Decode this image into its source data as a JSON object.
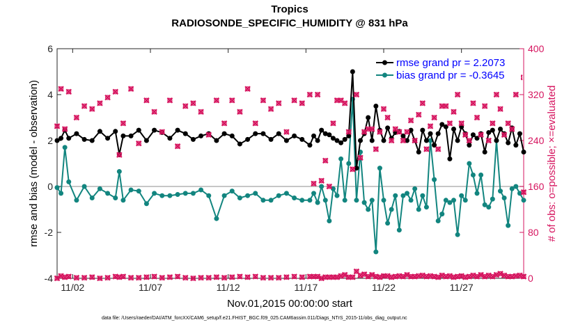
{
  "chart_data": {
    "type": "line",
    "title": "Tropics",
    "subtitle": "RADIOSONDE_SPECIFIC_HUMIDITY @ 831 hPa",
    "xlabel": "Nov.01,2015 00:00:00 start",
    "ylabel_left": "rmse and bias (model - observation)",
    "ylabel_right": "# of obs: o=possible; ×=evaluated",
    "ylim_left": [
      -4,
      6
    ],
    "ylim_right": [
      0,
      400
    ],
    "xlim": [
      1,
      31
    ],
    "x_tick_values": [
      2,
      7,
      12,
      17,
      22,
      27
    ],
    "x_tick_labels": [
      "11/02",
      "11/07",
      "11/12",
      "11/17",
      "11/22",
      "11/27"
    ],
    "y_left_ticks": [
      -4,
      -2,
      0,
      2,
      4,
      6
    ],
    "y_right_ticks": [
      0,
      80,
      160,
      240,
      320,
      400
    ],
    "footer": "data file: /Users/raeder/DAI/ATM_forcXX/CAM6_setup/f.e21.FHIST_BGC.f09_025.CAM6assim.011/Diags_NTrS_2015-11/obs_diag_output.nc",
    "colors": {
      "rmse": "#000000",
      "bias": "#12857f",
      "obs": "#d6155f",
      "zero": "#b3b3b3"
    },
    "series": [
      {
        "name": "rmse",
        "legend": "rmse grand pr = 2.2073",
        "axis": "left",
        "x": [
          1.0,
          1.25,
          1.5,
          1.75,
          2.25,
          2.75,
          3.25,
          3.75,
          4.25,
          4.75,
          5.0,
          5.25,
          5.75,
          6.25,
          6.75,
          7.25,
          7.75,
          8.25,
          8.75,
          9.25,
          9.75,
          10.25,
          10.75,
          11.25,
          11.75,
          12.25,
          12.75,
          13.25,
          13.75,
          14.25,
          14.75,
          15.25,
          15.75,
          16.25,
          16.75,
          17.25,
          17.5,
          17.75,
          18.0,
          18.25,
          18.5,
          18.75,
          19.0,
          19.25,
          19.5,
          19.75,
          20.0,
          20.25,
          20.5,
          20.75,
          21.0,
          21.25,
          21.5,
          21.75,
          22.0,
          22.25,
          22.5,
          22.75,
          23.0,
          23.25,
          23.5,
          23.75,
          24.0,
          24.25,
          24.5,
          24.75,
          25.0,
          25.25,
          25.5,
          25.75,
          26.0,
          26.25,
          26.5,
          26.75,
          27.0,
          27.25,
          27.5,
          27.75,
          28.0,
          28.25,
          28.5,
          28.75,
          29.0,
          29.25,
          29.5,
          29.75,
          30.0,
          30.25,
          30.5,
          30.75,
          31.0
        ],
        "values": [
          2.0,
          2.1,
          2.45,
          2.1,
          2.3,
          2.05,
          2.0,
          2.4,
          2.1,
          2.4,
          1.4,
          2.2,
          2.2,
          2.45,
          2.0,
          2.45,
          2.35,
          2.1,
          2.45,
          2.3,
          2.05,
          2.2,
          2.3,
          2.0,
          2.3,
          2.2,
          1.85,
          2.05,
          2.3,
          2.3,
          2.05,
          2.3,
          2.0,
          2.2,
          2.05,
          1.8,
          2.2,
          2.0,
          2.45,
          2.3,
          2.25,
          2.1,
          2.0,
          1.9,
          2.05,
          2.2,
          5.0,
          0.8,
          2.0,
          2.3,
          3.0,
          2.0,
          3.5,
          2.45,
          2.0,
          2.55,
          2.1,
          2.35,
          2.4,
          2.2,
          2.0,
          2.45,
          2.0,
          1.5,
          2.45,
          2.0,
          2.3,
          1.8,
          2.3,
          2.7,
          2.6,
          1.2,
          2.5,
          2.0,
          2.6,
          2.3,
          1.8,
          2.25,
          2.1,
          2.3,
          1.5,
          2.35,
          2.45,
          2.0,
          2.5,
          2.3,
          1.9,
          2.55,
          1.8,
          2.3,
          1.5
        ]
      },
      {
        "name": "bias",
        "legend": "bias grand pr = -0.3645",
        "axis": "left",
        "x": [
          1.0,
          1.25,
          1.5,
          1.75,
          2.25,
          2.75,
          3.25,
          3.75,
          4.25,
          4.75,
          5.0,
          5.25,
          5.75,
          6.25,
          6.75,
          7.25,
          7.75,
          8.25,
          8.75,
          9.25,
          9.75,
          10.25,
          10.75,
          11.25,
          11.75,
          12.25,
          12.75,
          13.25,
          13.75,
          14.25,
          14.75,
          15.25,
          15.75,
          16.25,
          16.75,
          17.25,
          17.5,
          17.75,
          18.0,
          18.25,
          18.5,
          18.75,
          19.0,
          19.25,
          19.5,
          19.75,
          20.0,
          20.25,
          20.5,
          20.75,
          21.0,
          21.25,
          21.5,
          21.75,
          22.0,
          22.25,
          22.5,
          22.75,
          23.0,
          23.25,
          23.5,
          23.75,
          24.0,
          24.25,
          24.5,
          24.75,
          25.0,
          25.25,
          25.5,
          25.75,
          26.0,
          26.25,
          26.5,
          26.75,
          27.0,
          27.25,
          27.5,
          27.75,
          28.0,
          28.25,
          28.5,
          28.75,
          29.0,
          29.25,
          29.5,
          29.75,
          30.0,
          30.25,
          30.5,
          30.75,
          31.0
        ],
        "values": [
          -0.05,
          -0.3,
          1.7,
          0.2,
          -0.6,
          0.0,
          -0.5,
          -0.1,
          -0.3,
          -0.5,
          0.65,
          -0.6,
          -0.15,
          -0.2,
          -0.75,
          -0.3,
          -0.4,
          -0.4,
          -0.35,
          -0.3,
          -0.3,
          -0.15,
          -0.4,
          -1.4,
          -0.4,
          -0.2,
          -0.5,
          -0.4,
          -0.3,
          -0.6,
          -0.6,
          -0.4,
          -0.3,
          -0.5,
          -0.6,
          -0.6,
          -0.3,
          -0.7,
          0.0,
          -0.6,
          -1.5,
          -0.1,
          -0.4,
          1.2,
          -0.6,
          1.0,
          3.8,
          -0.6,
          1.5,
          -0.7,
          -1.0,
          -0.6,
          -2.85,
          0.8,
          -0.6,
          -1.6,
          -1.0,
          -0.4,
          -1.9,
          -0.4,
          -0.3,
          -0.6,
          -0.1,
          -1.0,
          -0.4,
          -0.9,
          2.0,
          0.3,
          -1.5,
          -1.2,
          -0.6,
          -0.7,
          -0.6,
          -2.1,
          -0.4,
          -0.6,
          1.0,
          0.5,
          -0.3,
          0.5,
          -0.8,
          -0.9,
          -0.55,
          2.0,
          -0.2,
          -0.5,
          -1.7,
          -0.1,
          0.0,
          -0.3,
          -0.6
        ]
      },
      {
        "name": "possible",
        "axis": "right",
        "x": [
          1.0,
          1.25,
          1.5,
          1.75,
          2.25,
          2.75,
          3.25,
          3.75,
          4.25,
          4.75,
          5.0,
          5.25,
          5.75,
          6.25,
          6.75,
          7.25,
          7.75,
          8.25,
          8.75,
          9.25,
          9.75,
          10.25,
          10.75,
          11.25,
          11.75,
          12.25,
          12.75,
          13.25,
          13.75,
          14.25,
          14.75,
          15.25,
          15.75,
          16.25,
          16.75,
          17.25,
          17.5,
          17.75,
          18.0,
          18.25,
          18.5,
          18.75,
          19.0,
          19.25,
          19.5,
          19.75,
          20.0,
          20.25,
          20.5,
          20.75,
          21.0,
          21.25,
          21.5,
          21.75,
          22.0,
          22.25,
          22.5,
          22.75,
          23.0,
          23.25,
          23.5,
          23.75,
          24.0,
          24.25,
          24.5,
          24.75,
          25.0,
          25.25,
          25.5,
          25.75,
          26.0,
          26.25,
          26.5,
          26.75,
          27.0,
          27.25,
          27.5,
          27.75,
          28.0,
          28.25,
          28.5,
          28.75,
          29.0,
          29.25,
          29.5,
          29.75,
          30.0,
          30.25,
          30.5,
          30.75,
          31.0
        ],
        "values": [
          265,
          330,
          260,
          325,
          280,
          300,
          295,
          305,
          315,
          325,
          215,
          270,
          330,
          235,
          310,
          290,
          255,
          310,
          230,
          300,
          305,
          290,
          250,
          310,
          270,
          310,
          290,
          330,
          270,
          310,
          295,
          305,
          255,
          310,
          305,
          320,
          165,
          320,
          170,
          205,
          160,
          270,
          310,
          310,
          305,
          255,
          190,
          320,
          210,
          255,
          260,
          260,
          225,
          255,
          295,
          280,
          240,
          260,
          255,
          240,
          255,
          275,
          240,
          285,
          305,
          225,
          265,
          280,
          225,
          300,
          300,
          270,
          290,
          320,
          270,
          250,
          240,
          305,
          280,
          250,
          300,
          240,
          270,
          320,
          295,
          250,
          270,
          260,
          320,
          350,
          150
        ],
        "near_zero": [
          0,
          4,
          2,
          3,
          1,
          1,
          2,
          0,
          1,
          3,
          2,
          3,
          1,
          1,
          2,
          3,
          1,
          2,
          3,
          1,
          0,
          1,
          1,
          2,
          1,
          2,
          3,
          2,
          3,
          1,
          1,
          1,
          2,
          3,
          2,
          3,
          3,
          3,
          0,
          2,
          2,
          2,
          2,
          4,
          6,
          2,
          2,
          12,
          5,
          7,
          3,
          6,
          3,
          2,
          4,
          4,
          2,
          3,
          4,
          3,
          6,
          3,
          3,
          4,
          5,
          3,
          4,
          3,
          2,
          5,
          3,
          4,
          2,
          3,
          4,
          2,
          3,
          5,
          3,
          6,
          3,
          5,
          3,
          6,
          8,
          5,
          3,
          3,
          4,
          5,
          3
        ]
      }
    ],
    "legend_position": "top-right"
  }
}
